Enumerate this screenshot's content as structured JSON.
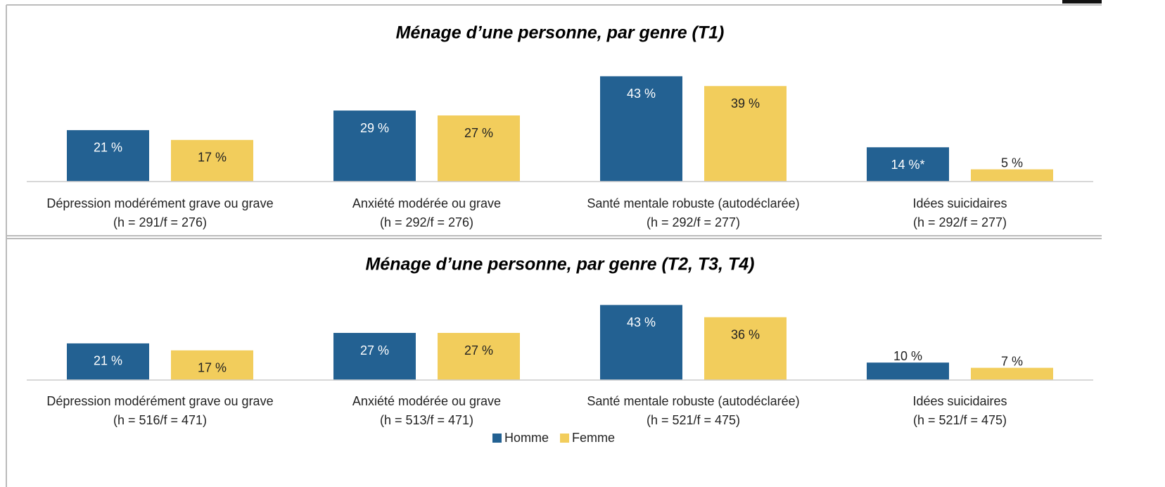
{
  "chart_data": [
    {
      "type": "bar",
      "title": "Ménage d’une personne, par genre (T1)",
      "categories": [
        [
          "Dépression modérément grave ou grave",
          "(h = 291/f = 276)"
        ],
        [
          "Anxiété modérée ou grave",
          "(h = 292/f = 276)"
        ],
        [
          "Santé mentale robuste (autodéclarée)",
          "(h = 292/f = 277)"
        ],
        [
          "Idées suicidaires",
          "(h = 292/f = 277)"
        ]
      ],
      "series": [
        {
          "color": "#236192",
          "values": [
            21,
            29,
            43,
            14
          ],
          "value_labels": [
            "21 %",
            "29 %",
            "43 %",
            "14 %*"
          ]
        },
        {
          "color": "#f2cd5c",
          "values": [
            17,
            27,
            39,
            5
          ],
          "value_labels": [
            "17 %",
            "27 %",
            "39 %",
            "5 %"
          ]
        }
      ],
      "ylim": [
        0,
        50
      ]
    },
    {
      "type": "bar",
      "title": "Ménage d’une personne, par genre (T2, T3, T4)",
      "categories": [
        [
          "Dépression modérément grave ou grave",
          "(h = 516/f = 471)"
        ],
        [
          "Anxiété modérée ou grave",
          "(h = 513/f = 471)"
        ],
        [
          "Santé mentale robuste (autodéclarée)",
          "(h = 521/f = 475)"
        ],
        [
          "Idées suicidaires",
          "(h = 521/f = 475)"
        ]
      ],
      "series": [
        {
          "name": "Homme",
          "color": "#236192",
          "values": [
            21,
            27,
            43,
            10
          ],
          "value_labels": [
            "21 %",
            "27 %",
            "43 %",
            "10 %"
          ]
        },
        {
          "name": "Femme",
          "color": "#f2cd5c",
          "values": [
            17,
            27,
            36,
            7
          ],
          "value_labels": [
            "17 %",
            "27 %",
            "36 %",
            "7 %"
          ]
        }
      ],
      "ylim": [
        0,
        50
      ],
      "legend": "bottom"
    }
  ]
}
